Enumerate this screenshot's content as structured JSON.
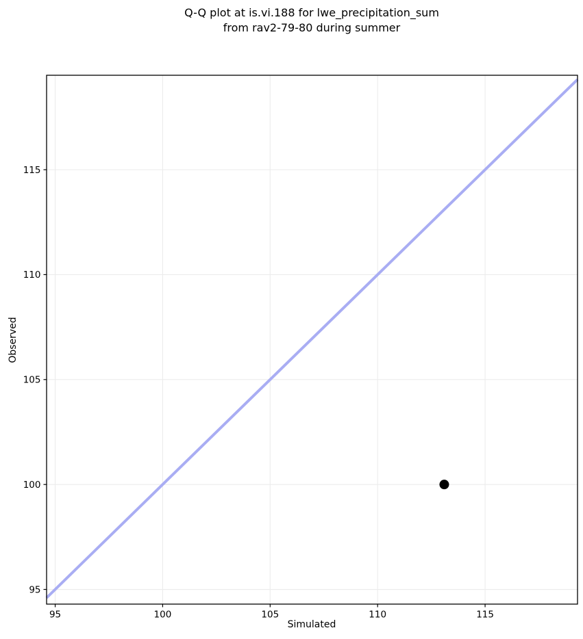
{
  "chart_data": {
    "type": "scatter",
    "title": "Q-Q plot at is.vi.188 for lwe_precipitation_sum\nfrom rav2-79-80 during summer",
    "xlabel": "Simulated",
    "ylabel": "Observed",
    "xlim": [
      94.6,
      119.3
    ],
    "ylim": [
      94.3,
      119.5
    ],
    "x_ticks": [
      95,
      100,
      105,
      110,
      115
    ],
    "y_ticks": [
      95,
      100,
      105,
      110,
      115
    ],
    "grid": true,
    "grid_color": "#ececec",
    "series": [
      {
        "name": "identity-line",
        "type": "line",
        "x": [
          94.6,
          119.3
        ],
        "y": [
          94.6,
          119.3
        ],
        "color": "#a9adf3",
        "line_width": 4
      },
      {
        "name": "observed-vs-simulated",
        "type": "scatter",
        "points": [
          [
            113.1,
            100.0
          ]
        ],
        "color": "#000000",
        "marker_radius": 7
      }
    ],
    "legend": null,
    "colors": {
      "spine": "#000000",
      "tick_label": "#000000",
      "background": "#ffffff"
    }
  }
}
